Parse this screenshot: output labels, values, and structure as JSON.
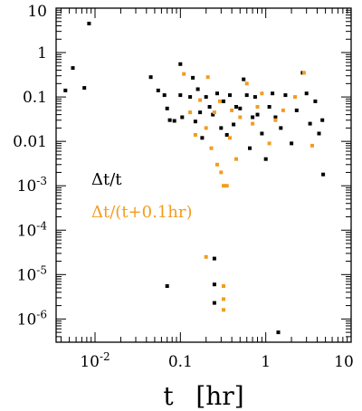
{
  "chart_data": {
    "type": "scatter",
    "title": "",
    "xlabel": "t",
    "xlabel_unit": "[hr]",
    "ylabel": "",
    "xscale": "log",
    "yscale": "log",
    "xlim": [
      0.0035,
      10
    ],
    "ylim": [
      3e-07,
      10
    ],
    "x_tick_labels": [
      {
        "value": 0.01,
        "base": "10",
        "exp": "-2"
      },
      {
        "value": 0.1,
        "base": "0.1",
        "exp": ""
      },
      {
        "value": 1,
        "base": "1",
        "exp": ""
      },
      {
        "value": 10,
        "base": "10",
        "exp": ""
      }
    ],
    "y_tick_labels": [
      {
        "value": 10,
        "base": "10",
        "exp": ""
      },
      {
        "value": 1,
        "base": "1",
        "exp": ""
      },
      {
        "value": 0.1,
        "base": "0.1",
        "exp": ""
      },
      {
        "value": 0.01,
        "base": "0.01",
        "exp": ""
      },
      {
        "value": 0.001,
        "base": "10",
        "exp": "-3"
      },
      {
        "value": 0.0001,
        "base": "10",
        "exp": "-4"
      },
      {
        "value": 1e-05,
        "base": "10",
        "exp": "-5"
      },
      {
        "value": 1e-06,
        "base": "10",
        "exp": "-6"
      }
    ],
    "legend_position": "middle-left",
    "series": [
      {
        "name": "Δt/t",
        "color": "#000000",
        "points": [
          [
            0.0045,
            0.14
          ],
          [
            0.0055,
            0.45
          ],
          [
            0.0075,
            0.16
          ],
          [
            0.0085,
            4.5
          ],
          [
            0.045,
            0.28
          ],
          [
            0.055,
            0.14
          ],
          [
            0.065,
            0.11
          ],
          [
            0.07,
            0.055
          ],
          [
            0.075,
            0.03
          ],
          [
            0.085,
            0.029
          ],
          [
            0.1,
            0.55
          ],
          [
            0.1,
            0.11
          ],
          [
            0.105,
            0.035
          ],
          [
            0.13,
            0.1
          ],
          [
            0.14,
            0.27
          ],
          [
            0.15,
            0.028
          ],
          [
            0.16,
            0.15
          ],
          [
            0.17,
            0.045
          ],
          [
            0.18,
            0.012
          ],
          [
            0.2,
            0.1
          ],
          [
            0.22,
            0.06
          ],
          [
            0.24,
            0.04
          ],
          [
            0.27,
            0.12
          ],
          [
            0.3,
            0.02
          ],
          [
            0.32,
            0.08
          ],
          [
            0.35,
            0.014
          ],
          [
            0.38,
            0.11
          ],
          [
            0.42,
            0.024
          ],
          [
            0.45,
            0.06
          ],
          [
            0.5,
            0.055
          ],
          [
            0.55,
            0.25
          ],
          [
            0.6,
            0.11
          ],
          [
            0.65,
            0.007
          ],
          [
            0.7,
            0.035
          ],
          [
            0.75,
            0.1
          ],
          [
            0.8,
            0.04
          ],
          [
            0.9,
            0.015
          ],
          [
            1,
            0.004
          ],
          [
            1.1,
            0.06
          ],
          [
            1.2,
            0.12
          ],
          [
            1.3,
            0.035
          ],
          [
            1.5,
            0.02
          ],
          [
            1.7,
            0.11
          ],
          [
            2,
            0.009
          ],
          [
            2.3,
            0.05
          ],
          [
            2.7,
            0.35
          ],
          [
            3,
            0.12
          ],
          [
            3.3,
            0.025
          ],
          [
            3.8,
            0.08
          ],
          [
            4.2,
            0.015
          ],
          [
            4.6,
            0.03
          ],
          [
            4.7,
            0.0018
          ],
          [
            0.07,
            5.5e-06
          ],
          [
            0.25,
            2.3e-05
          ],
          [
            0.25,
            6e-06
          ],
          [
            0.25,
            2.3e-06
          ],
          [
            1.4,
            5e-07
          ]
        ]
      },
      {
        "name": "Δt/(t+0.1hr)",
        "color": "#f39c1f",
        "points": [
          [
            0.11,
            0.33
          ],
          [
            0.13,
            0.045
          ],
          [
            0.15,
            0.014
          ],
          [
            0.17,
            0.085
          ],
          [
            0.2,
            0.02
          ],
          [
            0.21,
            0.28
          ],
          [
            0.23,
            0.007
          ],
          [
            0.25,
            0.045
          ],
          [
            0.27,
            0.003
          ],
          [
            0.29,
            0.08
          ],
          [
            0.3,
            0.002
          ],
          [
            0.32,
            0.001
          ],
          [
            0.35,
            0.001
          ],
          [
            0.38,
            0.012
          ],
          [
            0.4,
            0.05
          ],
          [
            0.45,
            0.004
          ],
          [
            0.5,
            0.035
          ],
          [
            0.6,
            0.2
          ],
          [
            0.7,
            0.025
          ],
          [
            0.8,
            0.06
          ],
          [
            0.9,
            0.12
          ],
          [
            1.1,
            0.009
          ],
          [
            1.3,
            0.03
          ],
          [
            1.6,
            0.05
          ],
          [
            2.2,
            0.1
          ],
          [
            2.8,
            0.35
          ],
          [
            3.5,
            0.008
          ],
          [
            0.2,
            2.5e-05
          ],
          [
            0.32,
            5.5e-06
          ],
          [
            0.32,
            2.8e-06
          ],
          [
            0.32,
            1.6e-06
          ]
        ]
      }
    ]
  }
}
